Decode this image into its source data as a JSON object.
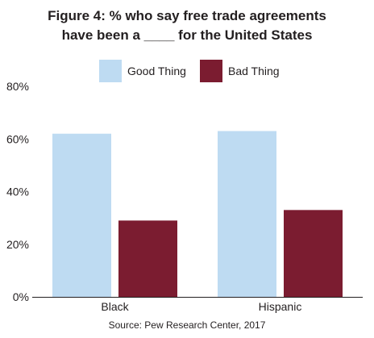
{
  "title": {
    "line1": "Figure 4: % who say free trade agreements",
    "line2": "have been a ____ for the United States"
  },
  "legend": [
    {
      "label": "Good Thing",
      "color": "#bedbf2"
    },
    {
      "label": "Bad Thing",
      "color": "#7b1c30"
    }
  ],
  "source": "Source: Pew Research Center, 2017",
  "chart_data": {
    "type": "bar",
    "categories": [
      "Black",
      "Hispanic"
    ],
    "series": [
      {
        "name": "Good Thing",
        "values": [
          62,
          63
        ],
        "color": "#bedbf2"
      },
      {
        "name": "Bad Thing",
        "values": [
          29,
          33
        ],
        "color": "#7b1c30"
      }
    ],
    "ylim": [
      0,
      80
    ],
    "yticks": [
      0,
      20,
      40,
      60,
      80
    ],
    "ytick_labels": [
      "0%",
      "20%",
      "40%",
      "60%",
      "80%"
    ],
    "grid": false,
    "legend_position": "top"
  }
}
